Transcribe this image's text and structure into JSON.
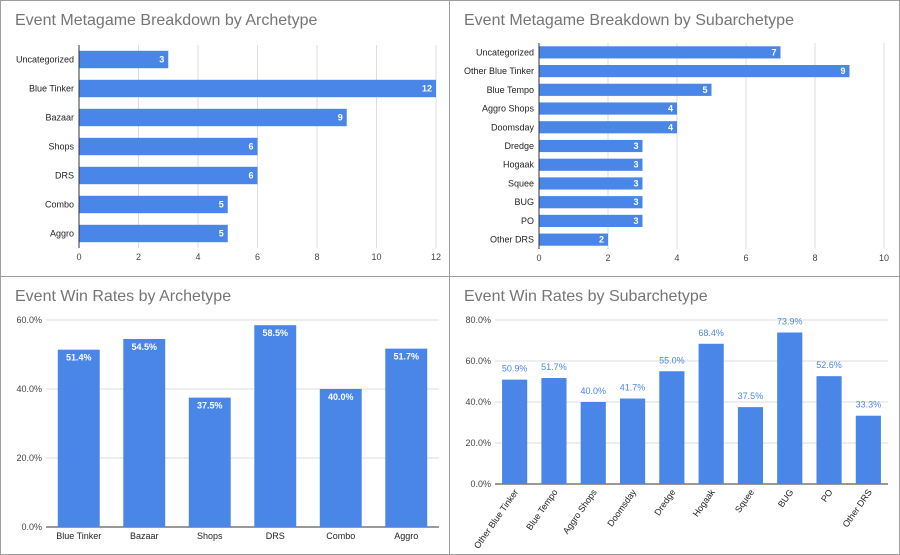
{
  "colors": {
    "bar": "#4a86e8",
    "grid": "#dddddd",
    "axis": "#333333"
  },
  "chart_data": [
    {
      "type": "bar",
      "orientation": "horizontal",
      "title": "Event Metagame Breakdown by Archetype",
      "categories": [
        "Uncategorized",
        "Blue Tinker",
        "Bazaar",
        "Shops",
        "DRS",
        "Combo",
        "Aggro"
      ],
      "values": [
        3,
        12,
        9,
        6,
        6,
        5,
        5
      ],
      "value_labels": [
        "3",
        "12",
        "9",
        "6",
        "6",
        "5",
        "5"
      ],
      "xlim": [
        0,
        12
      ],
      "ticks": [
        0,
        2,
        4,
        6,
        8,
        10,
        12
      ],
      "tick_labels": [
        "0",
        "2",
        "4",
        "6",
        "8",
        "10",
        "12"
      ],
      "grid": true
    },
    {
      "type": "bar",
      "orientation": "horizontal",
      "title": "Event Metagame Breakdown by Subarchetype",
      "categories": [
        "Uncategorized",
        "Other Blue Tinker",
        "Blue Tempo",
        "Aggro Shops",
        "Doomsday",
        "Dredge",
        "Hogaak",
        "Squee",
        "BUG",
        "PO",
        "Other DRS"
      ],
      "values": [
        7,
        9,
        5,
        4,
        4,
        3,
        3,
        3,
        3,
        3,
        2
      ],
      "value_labels": [
        "7",
        "9",
        "5",
        "4",
        "4",
        "3",
        "3",
        "3",
        "3",
        "3",
        "2"
      ],
      "xlim": [
        0,
        10
      ],
      "ticks": [
        0,
        2,
        4,
        6,
        8,
        10
      ],
      "tick_labels": [
        "0",
        "2",
        "4",
        "6",
        "8",
        "10"
      ],
      "grid": true
    },
    {
      "type": "bar",
      "orientation": "vertical",
      "title": "Event Win Rates by Archetype",
      "categories": [
        "Blue Tinker",
        "Bazaar",
        "Shops",
        "DRS",
        "Combo",
        "Aggro"
      ],
      "values": [
        51.4,
        54.5,
        37.5,
        58.5,
        40.0,
        51.7
      ],
      "value_labels": [
        "51.4%",
        "54.5%",
        "37.5%",
        "58.5%",
        "40.0%",
        "51.7%"
      ],
      "ylim": [
        0,
        60
      ],
      "ticks": [
        0,
        20,
        40,
        60
      ],
      "tick_labels": [
        "0.0%",
        "20.0%",
        "40.0%",
        "60.0%"
      ],
      "label_position": "inside",
      "grid": true
    },
    {
      "type": "bar",
      "orientation": "vertical",
      "title": "Event Win Rates by Subarchetype",
      "categories": [
        "Other Blue Tinker",
        "Blue Tempo",
        "Aggro Shops",
        "Doomsday",
        "Dredge",
        "Hogaak",
        "Squee",
        "BUG",
        "PO",
        "Other DRS"
      ],
      "values": [
        50.9,
        51.7,
        40.0,
        41.7,
        55.0,
        68.4,
        37.5,
        73.9,
        52.6,
        33.3
      ],
      "value_labels": [
        "50.9%",
        "51.7%",
        "40.0%",
        "41.7%",
        "55.0%",
        "68.4%",
        "37.5%",
        "73.9%",
        "52.6%",
        "33.3%"
      ],
      "ylim": [
        0,
        80
      ],
      "ticks": [
        0,
        20,
        40,
        60,
        80
      ],
      "tick_labels": [
        "0.0%",
        "20.0%",
        "40.0%",
        "60.0%",
        "80.0%"
      ],
      "label_position": "above",
      "rotated_category_labels": true,
      "grid": true
    }
  ]
}
